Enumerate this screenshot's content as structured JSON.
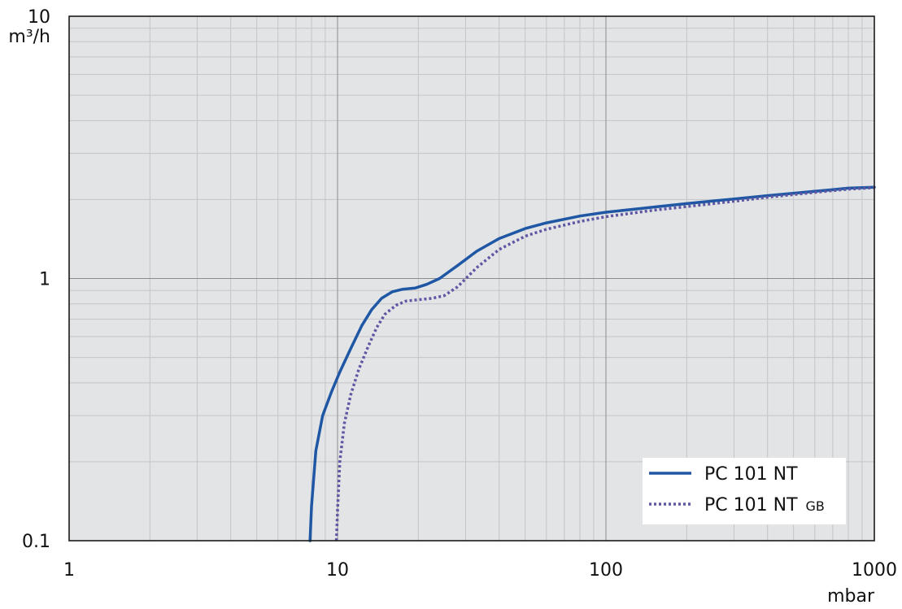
{
  "chart_data": {
    "type": "line",
    "title": "",
    "xlabel": "mbar",
    "ylabel": "m³/h",
    "xscale": "log",
    "yscale": "log",
    "xlim": [
      1,
      1000
    ],
    "ylim": [
      0.1,
      10
    ],
    "xticks": [
      1,
      10,
      100,
      1000
    ],
    "xtick_labels": [
      "1",
      "10",
      "100",
      "1000"
    ],
    "yticks": [
      0.1,
      1,
      10
    ],
    "ytick_labels": [
      "0.1",
      "1",
      "10"
    ],
    "grid": true,
    "legend_position": "bottom-right",
    "series": [
      {
        "name": "PC 101 NT",
        "label_suffix": "",
        "color": "#1f57a4",
        "style": "solid",
        "x": [
          7.9,
          8.0,
          8.3,
          8.8,
          9.5,
          10.2,
          11.2,
          12.3,
          13.4,
          14.6,
          16.0,
          17.5,
          19.5,
          21.5,
          24.0,
          28.0,
          33.0,
          40.0,
          50.0,
          60.0,
          80.0,
          100.0,
          150.0,
          200.0,
          300.0,
          400.0,
          600.0,
          800.0,
          1000.0
        ],
        "y": [
          0.1,
          0.135,
          0.22,
          0.3,
          0.37,
          0.44,
          0.54,
          0.66,
          0.76,
          0.84,
          0.89,
          0.91,
          0.92,
          0.95,
          1.0,
          1.12,
          1.27,
          1.42,
          1.55,
          1.63,
          1.73,
          1.79,
          1.87,
          1.93,
          2.01,
          2.07,
          2.15,
          2.21,
          2.23
        ]
      },
      {
        "name": "PC 101 NT",
        "label_suffix": "GB",
        "color": "#5e57a4",
        "style": "dotted",
        "x": [
          9.9,
          10.0,
          10.2,
          10.6,
          11.2,
          12.0,
          13.0,
          14.0,
          15.0,
          16.5,
          18.0,
          20.0,
          22.5,
          25.0,
          28.0,
          33.0,
          40.0,
          50.0,
          60.0,
          80.0,
          100.0,
          150.0,
          200.0,
          300.0,
          400.0,
          600.0,
          800.0,
          1000.0
        ],
        "y": [
          0.1,
          0.13,
          0.2,
          0.28,
          0.36,
          0.45,
          0.55,
          0.65,
          0.73,
          0.79,
          0.82,
          0.83,
          0.84,
          0.86,
          0.93,
          1.1,
          1.29,
          1.45,
          1.54,
          1.65,
          1.72,
          1.82,
          1.88,
          1.97,
          2.04,
          2.13,
          2.19,
          2.22
        ]
      }
    ]
  }
}
